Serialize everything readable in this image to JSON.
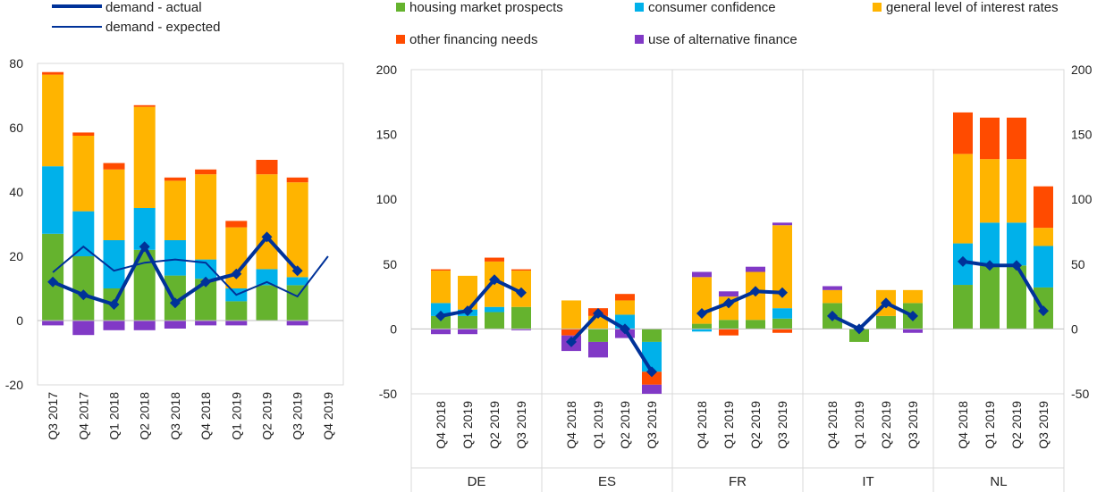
{
  "legend": {
    "demand_actual": "demand - actual",
    "demand_expected": "demand - expected",
    "housing": "housing market prospects",
    "consumer": "consumer confidence",
    "interest": "general level of interest rates",
    "other": "other financing needs",
    "alternative": "use of alternative finance"
  },
  "colors": {
    "housing": "#65b32e",
    "consumer": "#00b1ea",
    "interest": "#ffb400",
    "other": "#ff4b00",
    "alternative": "#8139c6",
    "demand_line": "#003299"
  },
  "chart_data": [
    {
      "type": "bar",
      "stacked": true,
      "panel": "euro area",
      "categories": [
        "Q3 2017",
        "Q4 2017",
        "Q1 2018",
        "Q2 2018",
        "Q3 2018",
        "Q4 2018",
        "Q1 2019",
        "Q2 2019",
        "Q3 2019",
        "Q4 2019"
      ],
      "ylim": [
        -20,
        80
      ],
      "yticks": [
        -20,
        0,
        20,
        40,
        60,
        80
      ],
      "grid": false,
      "series": [
        {
          "name": "housing market prospects",
          "key": "housing",
          "values": [
            27,
            20,
            10,
            22,
            14,
            13,
            6,
            11,
            11,
            null
          ]
        },
        {
          "name": "consumer confidence",
          "key": "consumer",
          "values": [
            21,
            14,
            15,
            13,
            11,
            6,
            4,
            5,
            2.5,
            null
          ]
        },
        {
          "name": "general level of interest rates",
          "key": "interest",
          "values": [
            28.5,
            23.5,
            22,
            31.5,
            18.5,
            26.5,
            19,
            29.5,
            29.5,
            null
          ]
        },
        {
          "name": "other financing needs",
          "key": "other",
          "values": [
            0.8,
            1,
            2,
            0.5,
            1,
            1.5,
            2,
            4.5,
            1.5,
            null
          ]
        },
        {
          "name": "use of alternative finance",
          "key": "alternative",
          "values": [
            -1.5,
            -4.5,
            -3,
            -3,
            -2.5,
            -1.5,
            -1.5,
            0,
            -1.5,
            null
          ]
        }
      ],
      "lines": [
        {
          "name": "demand - actual",
          "key": "demand_actual",
          "style": "thick-marker",
          "values": [
            12,
            8,
            5,
            23,
            5.5,
            12,
            14.5,
            26,
            15.5,
            null
          ]
        },
        {
          "name": "demand - expected",
          "key": "demand_expected",
          "style": "thin",
          "values": [
            15,
            23,
            15.5,
            18,
            19,
            18,
            8,
            12,
            7.5,
            20
          ]
        }
      ]
    },
    {
      "type": "bar",
      "stacked": true,
      "panel": "countries",
      "groups": [
        "DE",
        "ES",
        "FR",
        "IT",
        "NL"
      ],
      "categories": [
        "Q4 2018",
        "Q1 2019",
        "Q2 2019",
        "Q3 2019"
      ],
      "ylim": [
        -50,
        200
      ],
      "yticks": [
        -50,
        0,
        50,
        100,
        150,
        200
      ],
      "grid": false,
      "bars": {
        "DE": {
          "housing": [
            10,
            10,
            13,
            17
          ],
          "consumer": [
            10,
            5,
            4,
            0
          ],
          "interest": [
            25,
            26,
            35,
            28
          ],
          "other": [
            1,
            0,
            3,
            1
          ],
          "alternative": [
            -4,
            -4,
            0,
            -1
          ]
        },
        "ES": {
          "housing": [
            0,
            -10,
            0,
            -10
          ],
          "consumer": [
            0,
            0,
            11,
            -23
          ],
          "interest": [
            22,
            10,
            11,
            0
          ],
          "other": [
            -5,
            6,
            5,
            -10
          ],
          "alternative": [
            -12,
            -12,
            -7,
            -7
          ]
        },
        "FR": {
          "housing": [
            4,
            7,
            7,
            8
          ],
          "consumer": [
            -2,
            0,
            0,
            8
          ],
          "interest": [
            36,
            18,
            37,
            64
          ],
          "other": [
            0,
            -5,
            0,
            -3
          ],
          "alternative": [
            4,
            4,
            4,
            2
          ]
        },
        "IT": {
          "housing": [
            20,
            -10,
            10,
            20
          ],
          "consumer": [
            0,
            0,
            0,
            0
          ],
          "interest": [
            10,
            0,
            20,
            10
          ],
          "other": [
            0,
            0,
            0,
            0
          ],
          "alternative": [
            3,
            0,
            0,
            -3
          ]
        },
        "NL": {
          "housing": [
            34,
            49,
            49,
            32
          ],
          "consumer": [
            32,
            33,
            33,
            32
          ],
          "interest": [
            69,
            49,
            49,
            14
          ],
          "other": [
            32,
            32,
            32,
            32
          ],
          "alternative": [
            0,
            0,
            0,
            0
          ]
        }
      },
      "demand_actual": {
        "DE": [
          10,
          14,
          38,
          28
        ],
        "ES": [
          -10,
          12,
          0,
          -33
        ],
        "FR": [
          12,
          20,
          29,
          28
        ],
        "IT": [
          10,
          0,
          20,
          10
        ],
        "NL": [
          52,
          49,
          49,
          14
        ]
      }
    }
  ]
}
